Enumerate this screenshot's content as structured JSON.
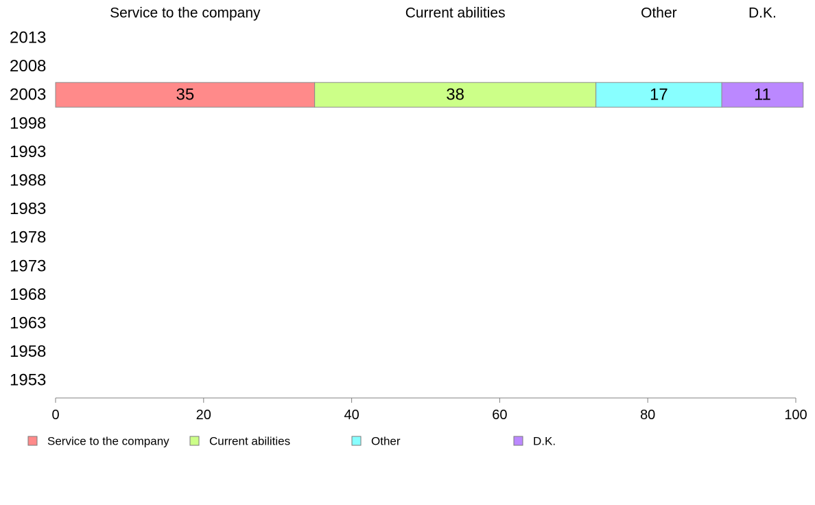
{
  "chart_data": {
    "type": "bar",
    "orientation": "horizontal",
    "stacked": true,
    "categories": [
      "2013",
      "2008",
      "2003",
      "1998",
      "1993",
      "1988",
      "1983",
      "1978",
      "1973",
      "1968",
      "1963",
      "1958",
      "1953"
    ],
    "series": [
      {
        "name": "Service to the company",
        "color": "#ff8a8a",
        "values": [
          null,
          null,
          35,
          null,
          null,
          null,
          null,
          null,
          null,
          null,
          null,
          null,
          null
        ]
      },
      {
        "name": "Current abilities",
        "color": "#ccff88",
        "values": [
          null,
          null,
          38,
          null,
          null,
          null,
          null,
          null,
          null,
          null,
          null,
          null,
          null
        ]
      },
      {
        "name": "Other",
        "color": "#88ffff",
        "values": [
          null,
          null,
          17,
          null,
          null,
          null,
          null,
          null,
          null,
          null,
          null,
          null,
          null
        ]
      },
      {
        "name": "D.K.",
        "color": "#bb88ff",
        "values": [
          null,
          null,
          11,
          null,
          null,
          null,
          null,
          null,
          null,
          null,
          null,
          null,
          null
        ]
      }
    ],
    "xlim": [
      0,
      100
    ],
    "xticks": [
      "0",
      "20",
      "40",
      "60",
      "80",
      "100"
    ],
    "title": "",
    "xlabel": "",
    "ylabel": "",
    "grid": false,
    "legend": "bottom",
    "series_headers_position": "top"
  }
}
